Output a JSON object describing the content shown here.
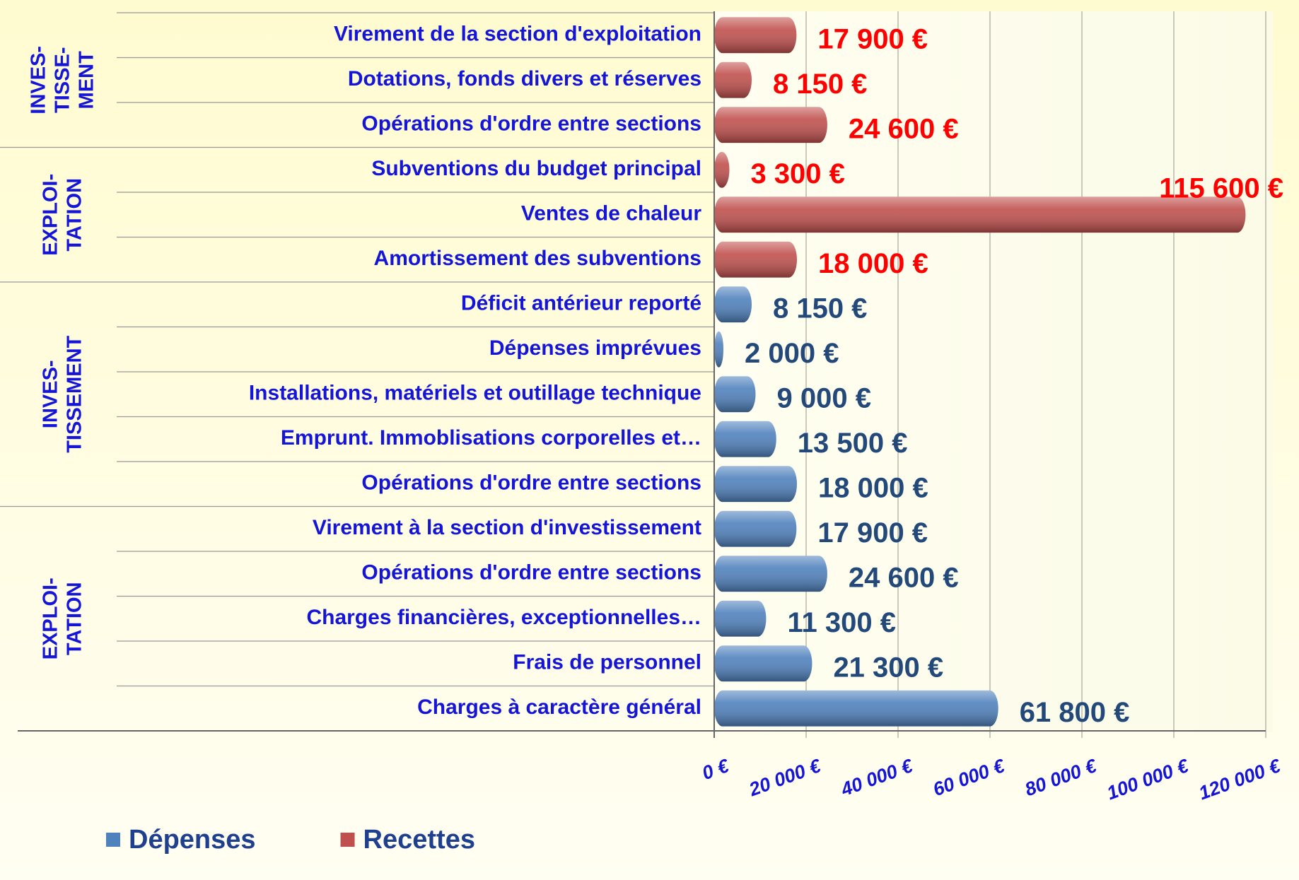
{
  "chart_data": {
    "type": "bar",
    "orientation": "horizontal",
    "categories": [
      "Virement de la section d'exploitation",
      "Dotations, fonds divers et réserves",
      "Opérations d'ordre entre sections",
      "Subventions du budget principal",
      "Ventes de chaleur",
      "Amortissement des subventions",
      "Déficit antérieur reporté",
      "Dépenses imprévues",
      "Installations, matériels et outillage technique",
      "Emprunt. Immoblisations corporelles et…",
      "Opérations d'ordre entre sections",
      "Virement à la section d'investissement",
      "Opérations d'ordre entre sections",
      "Charges financières, exceptionnelles…",
      "Frais de personnel",
      "Charges à caractère général"
    ],
    "series": [
      {
        "name": "Dépenses",
        "color": "#4f81bd",
        "label_color": "#23497a",
        "values": [
          null,
          null,
          null,
          null,
          null,
          null,
          8150,
          2000,
          9000,
          13500,
          18000,
          17900,
          24600,
          11300,
          21300,
          61800
        ],
        "value_labels": [
          null,
          null,
          null,
          null,
          null,
          null,
          "8 150 €",
          "2 000 €",
          "9 000 €",
          "13 500 €",
          "18 000 €",
          "17 900 €",
          "24 600 €",
          "11 300 €",
          "21 300 €",
          "61 800 €"
        ]
      },
      {
        "name": "Recettes",
        "color": "#c0504d",
        "label_color": "#ff0000",
        "values": [
          17900,
          8150,
          24600,
          3300,
          115600,
          18000,
          null,
          null,
          null,
          null,
          null,
          null,
          null,
          null,
          null,
          null
        ],
        "value_labels": [
          "17 900 €",
          "8 150 €",
          "24 600 €",
          "3 300 €",
          "115 600 €",
          "18 000 €",
          null,
          null,
          null,
          null,
          null,
          null,
          null,
          null,
          null,
          null
        ]
      }
    ],
    "groups": [
      [
        "INVES-",
        "TISSE-",
        "MENT"
      ],
      [
        "EXPLOI-",
        "TATION"
      ],
      [
        "INVES-",
        "TISSEMENT"
      ],
      [
        "EXPLOI-",
        "TATION"
      ]
    ],
    "xlim": [
      0,
      120000
    ],
    "xticks": [
      {
        "value": 0,
        "label": "0 €"
      },
      {
        "value": 20000,
        "label": "20 000 €"
      },
      {
        "value": 40000,
        "label": "40 000 €"
      },
      {
        "value": 60000,
        "label": "60 000 €"
      },
      {
        "value": 80000,
        "label": "80 000 €"
      },
      {
        "value": 100000,
        "label": "100 000 €"
      },
      {
        "value": 120000,
        "label": "120 000 €"
      }
    ],
    "grid": true,
    "legend": "bottom-left"
  }
}
